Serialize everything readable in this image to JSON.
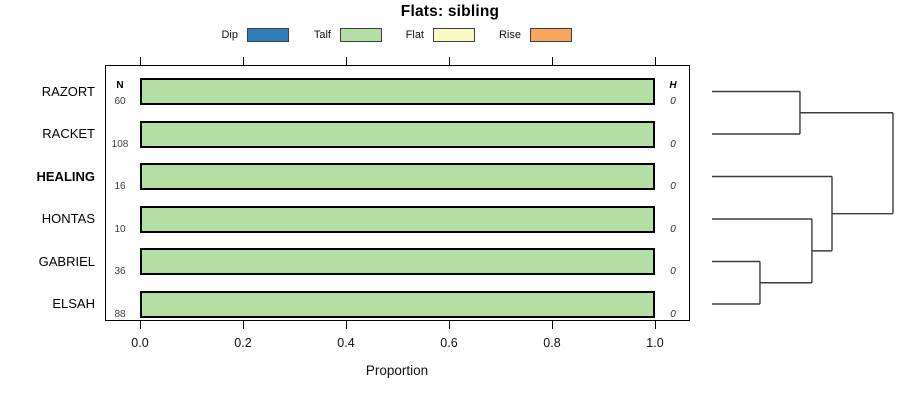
{
  "title": "Flats: sibling",
  "legend": [
    {
      "label": "Dip",
      "color": "#2E7EBC"
    },
    {
      "label": "Talf",
      "color": "#B3DFA5"
    },
    {
      "label": "Flat",
      "color": "#FAFAC4"
    },
    {
      "label": "Rise",
      "color": "#F9A55C"
    }
  ],
  "columns": {
    "n_header": "N",
    "h_header": "H"
  },
  "xaxis": {
    "label": "Proportion",
    "tick_labels": [
      "0.0",
      "0.2",
      "0.4",
      "0.6",
      "0.8",
      "1.0"
    ]
  },
  "chart_data": {
    "type": "bar",
    "orientation": "horizontal",
    "title": "Flats: sibling",
    "xlabel": "Proportion",
    "xlim": [
      0,
      1
    ],
    "xticks": [
      0,
      0.2,
      0.4,
      0.6,
      0.8,
      1.0
    ],
    "grid": false,
    "legend_position": "top",
    "series_names": [
      "Dip",
      "Talf",
      "Flat",
      "Rise"
    ],
    "series_colors": {
      "Dip": "#2E7EBC",
      "Talf": "#B3DFA5",
      "Flat": "#FAFAC4",
      "Rise": "#F9A55C"
    },
    "rows": [
      {
        "label": "RAZORT",
        "bold": false,
        "n": 60,
        "h": 0,
        "values": {
          "Dip": 0,
          "Talf": 1,
          "Flat": 0,
          "Rise": 0
        }
      },
      {
        "label": "RACKET",
        "bold": false,
        "n": 108,
        "h": 0,
        "values": {
          "Dip": 0,
          "Talf": 1,
          "Flat": 0,
          "Rise": 0
        }
      },
      {
        "label": "HEALING",
        "bold": true,
        "n": 16,
        "h": 0,
        "values": {
          "Dip": 0,
          "Talf": 1,
          "Flat": 0,
          "Rise": 0
        }
      },
      {
        "label": "HONTAS",
        "bold": false,
        "n": 10,
        "h": 0,
        "values": {
          "Dip": 0,
          "Talf": 1,
          "Flat": 0,
          "Rise": 0
        }
      },
      {
        "label": "GABRIEL",
        "bold": false,
        "n": 36,
        "h": 0,
        "values": {
          "Dip": 0,
          "Talf": 1,
          "Flat": 0,
          "Rise": 0
        }
      },
      {
        "label": "ELSAH",
        "bold": false,
        "n": 88,
        "h": 0,
        "values": {
          "Dip": 0,
          "Talf": 1,
          "Flat": 0,
          "Rise": 0
        }
      }
    ],
    "dendrogram": {
      "leaf_order": [
        "RAZORT",
        "RACKET",
        "HEALING",
        "HONTAS",
        "GABRIEL",
        "ELSAH"
      ],
      "merges": [
        {
          "id": "m1",
          "children": [
            "GABRIEL",
            "ELSAH"
          ],
          "height": 0.265
        },
        {
          "id": "m2",
          "children": [
            "HONTAS",
            "m1"
          ],
          "height": 0.552
        },
        {
          "id": "m3",
          "children": [
            "HEALING",
            "m2"
          ],
          "height": 0.663
        },
        {
          "id": "m4",
          "children": [
            "RAZORT",
            "RACKET"
          ],
          "height": 0.486
        },
        {
          "id": "m5",
          "children": [
            "m4",
            "m3"
          ],
          "height": 1.0
        }
      ]
    }
  }
}
